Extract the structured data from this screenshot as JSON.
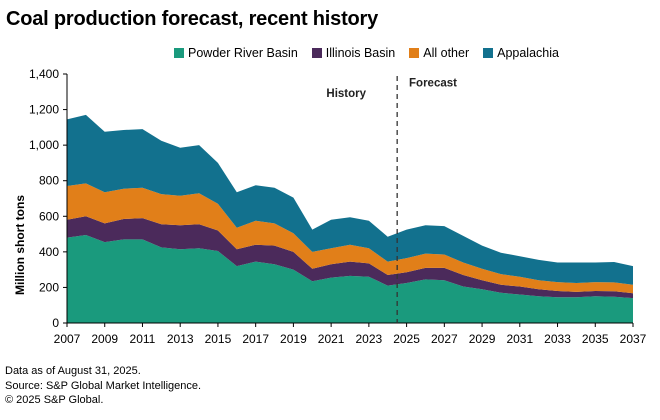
{
  "title": "Coal production forecast, recent history",
  "notes": {
    "line1": "Data as of August 31, 2025.",
    "line2": "Source: S&P Global Market Intelligence.",
    "line3": "© 2025 S&P Global."
  },
  "chart_data": {
    "type": "area",
    "stacked": true,
    "ylabel": "Million short tons",
    "xlabel": "",
    "ylim": [
      0,
      1400
    ],
    "xlim": [
      2007,
      2037
    ],
    "yticks": [
      0,
      200,
      400,
      600,
      800,
      1000,
      1200,
      1400
    ],
    "ytick_labels": [
      "0",
      "200",
      "400",
      "600",
      "800",
      "1,000",
      "1,200",
      "1,400"
    ],
    "xticks": [
      2007,
      2009,
      2011,
      2013,
      2015,
      2017,
      2019,
      2021,
      2023,
      2025,
      2027,
      2029,
      2031,
      2033,
      2035,
      2037
    ],
    "legend_position": "top",
    "grid": false,
    "divider_x": 2024.5,
    "annotations": [
      {
        "text": "History",
        "x": 2021.8,
        "y": 1270
      },
      {
        "text": "Forecast",
        "x": 2026.4,
        "y": 1330
      }
    ],
    "x": [
      2007,
      2008,
      2009,
      2010,
      2011,
      2012,
      2013,
      2014,
      2015,
      2016,
      2017,
      2018,
      2019,
      2020,
      2021,
      2022,
      2023,
      2024,
      2025,
      2026,
      2027,
      2028,
      2029,
      2030,
      2031,
      2032,
      2033,
      2034,
      2035,
      2036,
      2037
    ],
    "series": [
      {
        "name": "Powder River Basin",
        "color": "#1a9a7d",
        "values": [
          480,
          495,
          455,
          470,
          470,
          425,
          415,
          420,
          405,
          320,
          345,
          330,
          300,
          235,
          255,
          265,
          260,
          210,
          225,
          245,
          240,
          205,
          190,
          170,
          160,
          150,
          145,
          145,
          150,
          148,
          140
        ]
      },
      {
        "name": "Illinois Basin",
        "color": "#4b2a5b",
        "values": [
          100,
          105,
          105,
          115,
          120,
          130,
          135,
          135,
          115,
          95,
          95,
          105,
          100,
          70,
          75,
          80,
          75,
          60,
          60,
          65,
          70,
          65,
          50,
          45,
          45,
          40,
          35,
          30,
          30,
          30,
          27
        ]
      },
      {
        "name": "All other",
        "color": "#e17f19",
        "values": [
          190,
          185,
          175,
          170,
          170,
          170,
          165,
          175,
          150,
          120,
          135,
          125,
          105,
          95,
          90,
          95,
          85,
          75,
          80,
          80,
          75,
          70,
          65,
          60,
          55,
          50,
          50,
          50,
          50,
          50,
          48
        ]
      },
      {
        "name": "Appalachia",
        "color": "#12718e",
        "values": [
          375,
          385,
          340,
          330,
          330,
          300,
          270,
          270,
          230,
          200,
          200,
          200,
          200,
          125,
          160,
          155,
          155,
          140,
          160,
          160,
          160,
          150,
          130,
          120,
          115,
          115,
          110,
          115,
          110,
          115,
          105
        ]
      }
    ]
  }
}
